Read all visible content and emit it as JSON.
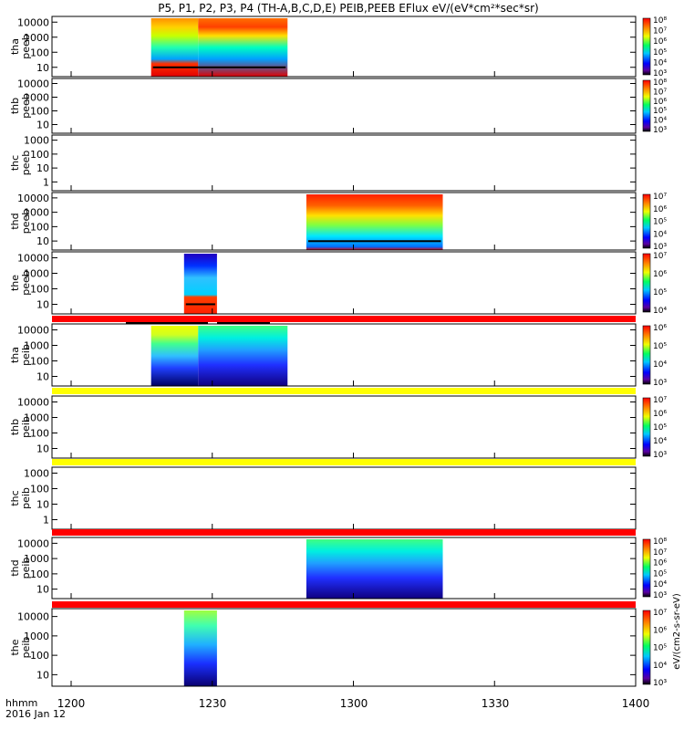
{
  "chart_data": {
    "type": "heatmap",
    "title": "P5, P1, P2, P3, P4 (TH-A,B,C,D,E) PEIB,PEEB EFlux eV/(eV*cm²*sec*sr)",
    "x_unit_label": "hhmm",
    "date_label": "2016 Jan 12",
    "x_ticks": [
      "1200",
      "1230",
      "1300",
      "1330",
      "1400"
    ],
    "x_range_minutes": [
      0,
      120
    ],
    "colorbar_label_partial": "eV/(cm2-s-sr-eV)",
    "panels": [
      {
        "id": "tha_peeb",
        "ylabel": [
          "tha",
          "peeb"
        ],
        "y_ticks": [
          "10",
          "100",
          "1000",
          "10000"
        ],
        "ylog": true,
        "data_spans_min": [
          [
            17,
            46
          ]
        ],
        "colorbar": true,
        "cbar_ticks": [
          "10³",
          "10⁴",
          "10⁵",
          "10⁶",
          "10⁷",
          "10⁸"
        ]
      },
      {
        "id": "thb_peeb",
        "ylabel": [
          "thb",
          "peeb"
        ],
        "y_ticks": [
          "10",
          "100",
          "1000",
          "10000"
        ],
        "ylog": true,
        "data_spans_min": [],
        "colorbar": true,
        "cbar_ticks": [
          "10³",
          "10⁴",
          "10⁵",
          "10⁶",
          "10⁷",
          "10⁸"
        ]
      },
      {
        "id": "thc_peeb",
        "ylabel": [
          "thc",
          "peeb"
        ],
        "y_ticks": [
          "1",
          "10",
          "100",
          "1000"
        ],
        "ylog": true,
        "data_spans_min": [],
        "colorbar": false,
        "cbar_ticks": []
      },
      {
        "id": "thd_peeb",
        "ylabel": [
          "thd",
          "peeb"
        ],
        "y_ticks": [
          "10",
          "100",
          "1000",
          "10000"
        ],
        "ylog": true,
        "data_spans_min": [
          [
            50,
            79
          ]
        ],
        "colorbar": true,
        "cbar_ticks": [
          "10³",
          "10⁴",
          "10⁵",
          "10⁶",
          "10⁷"
        ]
      },
      {
        "id": "the_peeb",
        "ylabel": [
          "the",
          "peeb"
        ],
        "y_ticks": [
          "10",
          "100",
          "1000",
          "10000"
        ],
        "ylog": true,
        "data_spans_min": [
          [
            24,
            31
          ]
        ],
        "colorbar": true,
        "cbar_ticks": [
          "10⁴",
          "10⁵",
          "10⁶",
          "10⁷"
        ]
      },
      {
        "id": "tha_peib",
        "ylabel": [
          "tha",
          "peib"
        ],
        "y_ticks": [
          "10",
          "100",
          "1000",
          "10000"
        ],
        "ylog": true,
        "data_spans_min": [
          [
            17,
            46
          ]
        ],
        "colorbar": true,
        "cbar_ticks": [
          "10³",
          "10⁴",
          "10⁵",
          "10⁶"
        ]
      },
      {
        "id": "thb_peib",
        "ylabel": [
          "thb",
          "peib"
        ],
        "y_ticks": [
          "10",
          "100",
          "1000",
          "10000"
        ],
        "ylog": true,
        "data_spans_min": [],
        "colorbar": true,
        "cbar_ticks": [
          "10³",
          "10⁴",
          "10⁵",
          "10⁶",
          "10⁷"
        ]
      },
      {
        "id": "thc_peib",
        "ylabel": [
          "thc",
          "peib"
        ],
        "y_ticks": [
          "1",
          "10",
          "100",
          "1000"
        ],
        "ylog": true,
        "data_spans_min": [],
        "colorbar": false,
        "cbar_ticks": []
      },
      {
        "id": "thd_peib",
        "ylabel": [
          "thd",
          "peib"
        ],
        "y_ticks": [
          "10",
          "100",
          "1000",
          "10000"
        ],
        "ylog": true,
        "data_spans_min": [
          [
            50,
            79
          ]
        ],
        "colorbar": true,
        "cbar_ticks": [
          "10³",
          "10⁴",
          "10⁵",
          "10⁶",
          "10⁷",
          "10⁸"
        ]
      },
      {
        "id": "the_peib",
        "ylabel": [
          "the",
          "peib"
        ],
        "y_ticks": [
          "10",
          "100",
          "1000",
          "10000"
        ],
        "ylog": true,
        "data_spans_min": [
          [
            24,
            31
          ]
        ],
        "colorbar": true,
        "cbar_ticks": [
          "10³",
          "10⁴",
          "10⁵",
          "10⁶",
          "10⁷"
        ]
      }
    ],
    "colors": {
      "red_bar": "#ff0000",
      "yellow_bar": "#ffff00",
      "dark": "#000000"
    }
  }
}
